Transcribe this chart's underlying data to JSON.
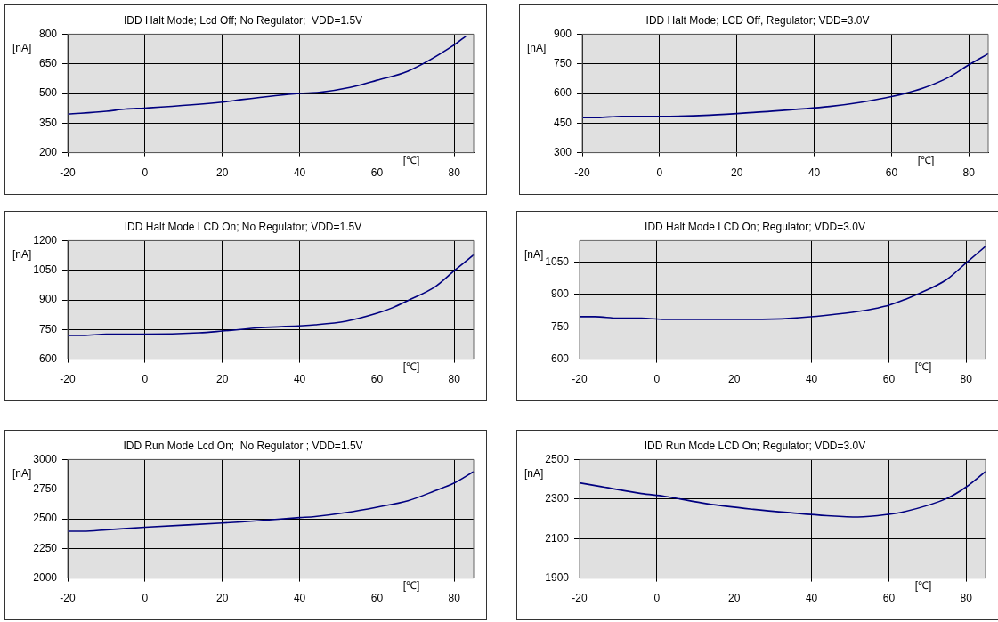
{
  "chart_data": [
    {
      "type": "line",
      "title": "IDD Halt Mode; Lcd Off; No Regulator;  VDD=1.5V",
      "xlabel": "[℃]",
      "ylabel": "[nA]",
      "color": "#000080",
      "x": [
        -20,
        -10,
        -5,
        0,
        20,
        25,
        40,
        45,
        53,
        60,
        68,
        80,
        83
      ],
      "values": [
        395,
        410,
        421,
        426,
        456,
        469,
        500,
        505,
        530,
        567,
        613,
        746,
        790
      ],
      "xlim": [
        -20,
        85
      ],
      "ylim": [
        200,
        800
      ],
      "xticks": [
        -20,
        0,
        20,
        40,
        60,
        80
      ],
      "yticks": [
        200,
        350,
        500,
        650,
        800
      ],
      "grid": true
    },
    {
      "type": "line",
      "title": "IDD Halt Mode; LCD Off, Regulator; VDD=3.0V",
      "xlabel": "[℃]",
      "ylabel": "[nA]",
      "color": "#000080",
      "x": [
        -20,
        -16,
        -10,
        0,
        13,
        25,
        44,
        52,
        60,
        68,
        75,
        80,
        85
      ],
      "values": [
        478,
        478,
        484,
        484,
        490,
        505,
        534,
        555,
        584,
        626,
        684,
        745,
        801
      ],
      "xlim": [
        -20,
        85
      ],
      "ylim": [
        300,
        900
      ],
      "xticks": [
        -20,
        0,
        20,
        40,
        60,
        80
      ],
      "yticks": [
        300,
        450,
        600,
        750,
        900
      ],
      "grid": true
    },
    {
      "type": "line",
      "title": "IDD Halt Mode LCD On; No Regulator; VDD=1.5V",
      "xlabel": "[℃]",
      "ylabel": "[nA]",
      "color": "#000080",
      "x": [
        -20,
        -16,
        -10,
        0,
        14,
        20,
        30,
        44,
        52,
        60,
        64,
        68,
        75,
        80,
        85
      ],
      "values": [
        720,
        720,
        726,
        726,
        733,
        742,
        759,
        774,
        792,
        832,
        860,
        897,
        966,
        1048,
        1128
      ],
      "xlim": [
        -20,
        85
      ],
      "ylim": [
        600,
        1200
      ],
      "xticks": [
        -20,
        0,
        20,
        40,
        60,
        80
      ],
      "yticks": [
        600,
        750,
        900,
        1050,
        1200
      ],
      "grid": true
    },
    {
      "type": "line",
      "title": "IDD Halt Mode LCD On; Regulator; VDD=3.0V",
      "xlabel": "[℃]",
      "ylabel": "[nA]",
      "color": "#000080",
      "x": [
        -20,
        -16,
        -10,
        -4,
        2,
        25,
        35,
        44,
        52,
        57,
        60,
        68,
        75,
        80,
        85
      ],
      "values": [
        797,
        797,
        790,
        790,
        784,
        784,
        790,
        804,
        821,
        837,
        850,
        906,
        970,
        1047,
        1123
      ],
      "xlim": [
        -20,
        85
      ],
      "ylim": [
        600,
        1150
      ],
      "xticks": [
        -20,
        0,
        20,
        40,
        60,
        80
      ],
      "yticks": [
        600,
        750,
        900,
        1050
      ],
      "grid": true
    },
    {
      "type": "line",
      "title": "IDD Run Mode Lcd On;  No Regulator ; VDD=1.5V",
      "xlabel": "[℃]",
      "ylabel": "[nA]",
      "color": "#000080",
      "x": [
        -20,
        -16,
        -10,
        0,
        20,
        25,
        40,
        44,
        52,
        60,
        68,
        75,
        80,
        85
      ],
      "values": [
        2395,
        2395,
        2407,
        2429,
        2464,
        2474,
        2510,
        2519,
        2552,
        2598,
        2652,
        2736,
        2802,
        2898
      ],
      "xlim": [
        -20,
        85
      ],
      "ylim": [
        2000,
        3000
      ],
      "xticks": [
        -20,
        0,
        20,
        40,
        60,
        80
      ],
      "yticks": [
        2000,
        2250,
        2500,
        2750,
        3000
      ],
      "grid": true
    },
    {
      "type": "line",
      "title": "IDD Run Mode LCD On; Regulator; VDD=3.0V",
      "xlabel": "[℃]",
      "ylabel": "[nA]",
      "color": "#000080",
      "x": [
        -20,
        -15,
        -4,
        2,
        13,
        25,
        35,
        44,
        52,
        60,
        64,
        75,
        80,
        85
      ],
      "values": [
        2382,
        2365,
        2328,
        2314,
        2276,
        2248,
        2230,
        2216,
        2209,
        2223,
        2236,
        2303,
        2361,
        2439
      ],
      "xlim": [
        -20,
        85
      ],
      "ylim": [
        1900,
        2500
      ],
      "xticks": [
        -20,
        0,
        20,
        40,
        60,
        80
      ],
      "yticks": [
        1900,
        2100,
        2300,
        2500
      ],
      "grid": true
    }
  ]
}
